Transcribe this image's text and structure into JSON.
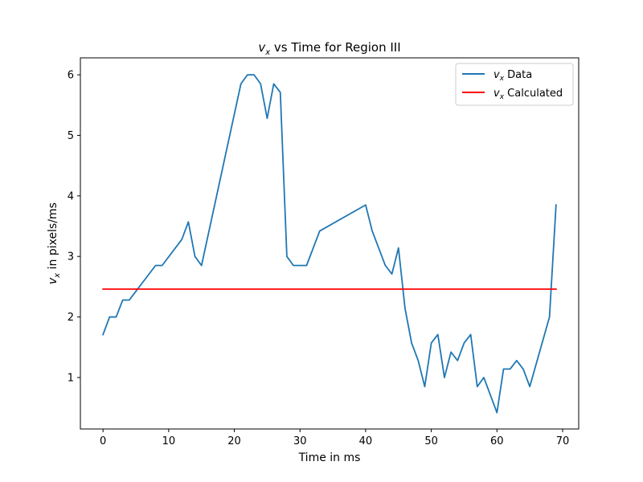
{
  "chart_data": {
    "type": "line",
    "title": "v_x vs Time for Region III",
    "title_parts": {
      "var": "v",
      "sub": "x",
      "rest": " vs Time for Region III"
    },
    "xlabel": "Time in ms",
    "ylabel": "v_x in pixels/ms",
    "ylabel_parts": {
      "var": "v",
      "sub": "x",
      "rest": " in pixels/ms"
    },
    "xlim": [
      -3.45,
      72.45
    ],
    "ylim": [
      0.15,
      6.28
    ],
    "xticks": [
      0,
      10,
      20,
      30,
      40,
      50,
      60,
      70
    ],
    "yticks": [
      1,
      2,
      3,
      4,
      5,
      6
    ],
    "grid": false,
    "legend_position": "top-right",
    "series": [
      {
        "name": "v_x Data",
        "name_parts": {
          "var": "v",
          "sub": "x",
          "rest": " Data"
        },
        "color": "#1f77b4",
        "x": [
          0,
          1,
          2,
          3,
          4,
          8,
          9,
          12,
          13,
          14,
          15,
          21,
          22,
          23,
          24,
          25,
          26,
          27,
          28,
          29,
          31,
          33,
          40,
          41,
          43,
          44,
          45,
          46,
          47,
          48,
          49,
          50,
          51,
          52,
          53,
          54,
          55,
          56,
          57,
          58,
          60,
          61,
          62,
          63,
          64,
          65,
          68,
          69
        ],
        "y": [
          1.71,
          2.0,
          2.0,
          2.28,
          2.28,
          2.85,
          2.85,
          3.28,
          3.57,
          3.0,
          2.85,
          5.85,
          6.0,
          6.0,
          5.85,
          5.28,
          5.85,
          5.71,
          3.0,
          2.85,
          2.85,
          3.42,
          3.85,
          3.42,
          2.85,
          2.71,
          3.14,
          2.14,
          1.57,
          1.28,
          0.85,
          1.57,
          1.71,
          1.0,
          1.42,
          1.28,
          1.57,
          1.71,
          0.85,
          1.0,
          0.42,
          1.14,
          1.14,
          1.28,
          1.14,
          0.85,
          2.0,
          3.85
        ]
      },
      {
        "name": "v_x Calculated",
        "name_parts": {
          "var": "v",
          "sub": "x",
          "rest": " Calculated"
        },
        "color": "#ff0000",
        "x": [
          0,
          69
        ],
        "y": [
          2.46,
          2.46
        ]
      }
    ]
  }
}
